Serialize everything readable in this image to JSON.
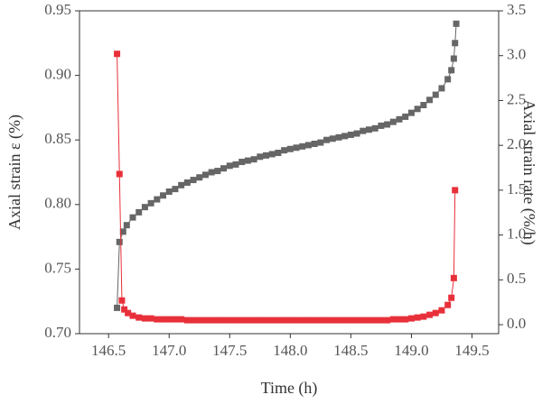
{
  "chart_data": {
    "type": "scatter",
    "xlabel": "Time (h)",
    "ylabel": "Axial strain ε (%)",
    "y2label": "Axial strain rate (%/h)",
    "xlim": [
      146.26,
      149.72
    ],
    "ylim": [
      0.7,
      0.95
    ],
    "y2lim": [
      -0.1,
      3.5
    ],
    "xticks": [
      146.5,
      {
        "value": 147,
        "label": "147.0"
      },
      147.5,
      {
        "value": 148,
        "label": "148.0"
      },
      148.5,
      {
        "value": 149,
        "label": "149.0"
      },
      149.5
    ],
    "yticks": [
      {
        "value": 0.7,
        "label": "0.70"
      },
      0.75,
      {
        "value": 0.8,
        "label": "0.80"
      },
      0.85,
      {
        "value": 0.9,
        "label": "0.90"
      },
      0.95
    ],
    "y2ticks": [
      {
        "value": 0,
        "label": "0.0"
      },
      0.5,
      {
        "value": 1,
        "label": "1.0"
      },
      1.5,
      {
        "value": 2,
        "label": "2.0"
      },
      2.5,
      {
        "value": 3,
        "label": "3.0"
      },
      3.5
    ],
    "series": [
      {
        "color": "#666666",
        "x": [
          146.57,
          146.59,
          146.62,
          146.65,
          146.7,
          146.75,
          146.8,
          146.85,
          146.9,
          146.95,
          147.0,
          147.05,
          147.1,
          147.15,
          147.2,
          147.25,
          147.3,
          147.35,
          147.4,
          147.45,
          147.5,
          147.55,
          147.6,
          147.65,
          147.7,
          147.75,
          147.8,
          147.85,
          147.9,
          147.95,
          148.0,
          148.05,
          148.1,
          148.15,
          148.2,
          148.25,
          148.3,
          148.35,
          148.4,
          148.45,
          148.5,
          148.55,
          148.6,
          148.65,
          148.7,
          148.75,
          148.8,
          148.85,
          148.9,
          148.95,
          149.0,
          149.05,
          149.1,
          149.15,
          149.2,
          149.25,
          149.3,
          149.33,
          149.35,
          149.36,
          149.37
        ],
        "values": [
          0.72,
          0.771,
          0.779,
          0.784,
          0.79,
          0.794,
          0.798,
          0.801,
          0.804,
          0.807,
          0.81,
          0.812,
          0.815,
          0.817,
          0.819,
          0.821,
          0.823,
          0.825,
          0.826,
          0.828,
          0.83,
          0.831,
          0.833,
          0.834,
          0.835,
          0.837,
          0.838,
          0.839,
          0.84,
          0.842,
          0.843,
          0.844,
          0.845,
          0.846,
          0.847,
          0.848,
          0.85,
          0.851,
          0.852,
          0.853,
          0.854,
          0.855,
          0.857,
          0.858,
          0.859,
          0.861,
          0.862,
          0.864,
          0.866,
          0.868,
          0.871,
          0.874,
          0.877,
          0.881,
          0.885,
          0.89,
          0.897,
          0.904,
          0.913,
          0.925,
          0.94
        ]
      },
      {
        "color": "#e8303a",
        "axis": "y2",
        "x": [
          146.57,
          146.59,
          146.61,
          146.63,
          146.66,
          146.7,
          146.75,
          146.8,
          146.85,
          146.9,
          146.95,
          147.0,
          147.05,
          147.1,
          147.15,
          147.2,
          147.25,
          147.3,
          147.35,
          147.4,
          147.45,
          147.5,
          147.55,
          147.6,
          147.65,
          147.7,
          147.75,
          147.8,
          147.85,
          147.9,
          147.95,
          148.0,
          148.05,
          148.1,
          148.15,
          148.2,
          148.25,
          148.3,
          148.35,
          148.4,
          148.45,
          148.5,
          148.55,
          148.6,
          148.65,
          148.7,
          148.75,
          148.8,
          148.85,
          148.9,
          148.95,
          149.0,
          149.05,
          149.1,
          149.15,
          149.2,
          149.25,
          149.3,
          149.33,
          149.35,
          149.36
        ],
        "values": [
          3.02,
          1.68,
          0.27,
          0.17,
          0.13,
          0.1,
          0.08,
          0.07,
          0.07,
          0.06,
          0.06,
          0.06,
          0.06,
          0.06,
          0.05,
          0.05,
          0.05,
          0.05,
          0.05,
          0.05,
          0.05,
          0.05,
          0.05,
          0.05,
          0.05,
          0.05,
          0.05,
          0.05,
          0.05,
          0.05,
          0.05,
          0.05,
          0.05,
          0.05,
          0.05,
          0.05,
          0.05,
          0.05,
          0.05,
          0.05,
          0.05,
          0.05,
          0.05,
          0.05,
          0.05,
          0.05,
          0.05,
          0.05,
          0.06,
          0.06,
          0.06,
          0.07,
          0.08,
          0.09,
          0.11,
          0.13,
          0.16,
          0.22,
          0.3,
          0.52,
          1.5
        ]
      }
    ]
  }
}
